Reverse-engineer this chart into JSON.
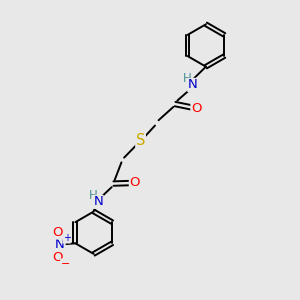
{
  "bg_color": "#e8e8e8",
  "bond_color": "#000000",
  "atom_colors": {
    "N": "#0000cc",
    "O": "#ff0000",
    "S": "#ccaa00",
    "H": "#4a9090",
    "C": "#000000"
  },
  "line_width": 1.4,
  "font_size": 9.5,
  "small_font": 8.5
}
